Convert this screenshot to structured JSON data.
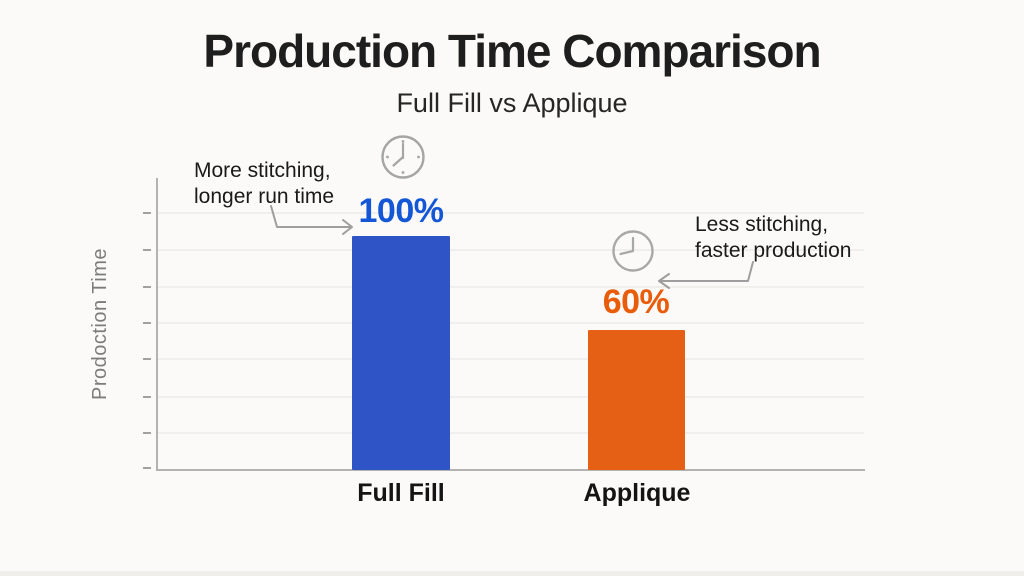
{
  "page": {
    "background": "#fbfaf8"
  },
  "header": {
    "title": "Production Time Comparison",
    "subtitle": "Full Fill vs Applique"
  },
  "axis": {
    "y_label": "Prodoction Time"
  },
  "chart_data": {
    "type": "bar",
    "categories": [
      "Full Fill",
      "Applique"
    ],
    "values": [
      100,
      60
    ],
    "value_labels": [
      "100%",
      "60%"
    ],
    "title": "Production Time Comparison",
    "subtitle": "Full Fill vs Applique",
    "xlabel": "",
    "ylabel": "Prodoction Time",
    "ylim": [
      0,
      125
    ],
    "grid": true,
    "legend": false,
    "bar_colors": [
      "#2e54c5",
      "#e56014"
    ],
    "value_label_colors": [
      "#1356d6",
      "#e85c0a"
    ]
  },
  "annotations": [
    {
      "line1": "More stitching,",
      "line2": "longer run time",
      "icon": "clock-icon",
      "arrow_direction": "right"
    },
    {
      "line1": "Less stitching,",
      "line2": "faster production",
      "icon": "clock-icon",
      "arrow_direction": "left"
    }
  ],
  "style": {
    "gridline_color": "#edebe7",
    "axis_color": "#b5b3af",
    "tick_color": "#a3a19d",
    "arrow_color": "#9e9e9e",
    "clock_color": "#a5a5a5"
  }
}
